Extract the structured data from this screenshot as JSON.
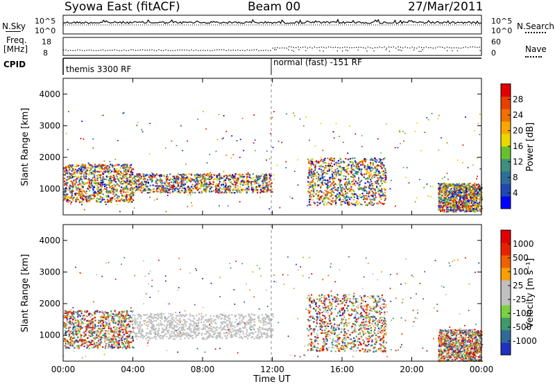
{
  "header": {
    "title": "Syowa East (fitACF)",
    "beam": "Beam 00",
    "date": "27/Mar/2011"
  },
  "strips": {
    "nsky_label": "N.Sky",
    "nsearch_label": "N.Search",
    "freq_label": "Freq.",
    "freq_unit": "[MHz]",
    "nave_label": "Nave",
    "cpid_label": "CPID",
    "noise_ticks_left": [
      "10^5",
      "10^0"
    ],
    "noise_ticks_right": [
      "10^5",
      "10^0"
    ],
    "freq_ticks": [
      "18",
      "8"
    ],
    "nave_ticks": [
      "60",
      "0"
    ],
    "cpid_segments": [
      {
        "start_hour": 0,
        "end_hour": 12,
        "text": "themis 3300 RF"
      },
      {
        "start_hour": 12,
        "end_hour": 24,
        "text": "normal (fast) -151 RF"
      }
    ]
  },
  "chart_data": [
    {
      "type": "heatmap",
      "ylabel": "Slant Range [km]",
      "xlim": [
        0,
        24
      ],
      "ylim": [
        180,
        4500
      ],
      "y_ticks": [
        "1000",
        "2000",
        "3000",
        "4000"
      ],
      "x_ticks": [
        "00:00",
        "04:00",
        "08:00",
        "12:00",
        "16:00",
        "20:00",
        "00:00"
      ],
      "colorbar": {
        "label": "Power [dB]",
        "ticks": [
          "4",
          "8",
          "12",
          "16",
          "20",
          "24",
          "28"
        ],
        "colors": [
          "#0000ff",
          "#1f48b0",
          "#2f6e9a",
          "#3f8f7a",
          "#66c22c",
          "#e8d800",
          "#f7a800",
          "#f07000",
          "#e84000",
          "#e00000"
        ]
      },
      "features": [
        {
          "t0": 0.0,
          "t1": 4.0,
          "r0": 600,
          "r1": 1800,
          "value": "mixed"
        },
        {
          "t0": 4.0,
          "t1": 12.0,
          "r0": 900,
          "r1": 1500,
          "value": "mixed"
        },
        {
          "t0": 14.0,
          "t1": 18.5,
          "r0": 500,
          "r1": 2000,
          "value": "mixed"
        },
        {
          "t0": 21.5,
          "t1": 24.0,
          "r0": 300,
          "r1": 1200,
          "value": "mixed"
        }
      ]
    },
    {
      "type": "heatmap",
      "ylabel": "Slant Range [km]",
      "xlabel": "Time UT",
      "xlim": [
        0,
        24
      ],
      "ylim": [
        180,
        4500
      ],
      "y_ticks": [
        "1000",
        "2000",
        "3000",
        "4000"
      ],
      "x_ticks": [
        "00:00",
        "04:00",
        "08:00",
        "12:00",
        "16:00",
        "20:00",
        "00:00"
      ],
      "colorbar": {
        "label": "Velocity [m s⁻¹]",
        "ticks": [
          "1000",
          "500",
          "100",
          "25",
          "-25",
          "-100",
          "-500",
          "-1000"
        ],
        "colors": [
          "#2030c0",
          "#2f6a9a",
          "#3f9a6a",
          "#7ad040",
          "#c0c0c0",
          "#c0c0c0",
          "#f7a000",
          "#f06000",
          "#e82000",
          "#e00000"
        ]
      },
      "features": [
        {
          "t0": 0.0,
          "t1": 4.0,
          "r0": 600,
          "r1": 1800,
          "value": "mixed"
        },
        {
          "t0": 4.0,
          "t1": 12.0,
          "r0": 900,
          "r1": 1700,
          "value": "near-zero"
        },
        {
          "t0": 14.0,
          "t1": 18.5,
          "r0": 500,
          "r1": 2300,
          "value": "mixed"
        },
        {
          "t0": 21.5,
          "t1": 24.0,
          "r0": 200,
          "r1": 1200,
          "value": "mixed"
        }
      ]
    }
  ]
}
